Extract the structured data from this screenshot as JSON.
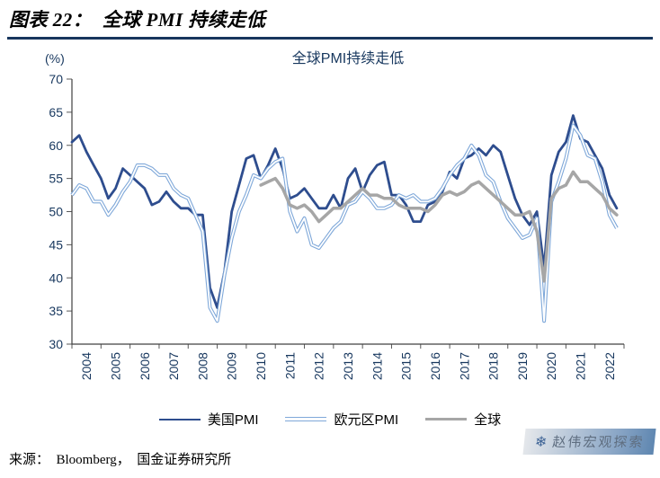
{
  "header": {
    "title": "图表 22：  全球 PMI 持续走低"
  },
  "chart_data": {
    "type": "line",
    "title": "全球PMI持续走低",
    "y_unit_label": "(%)",
    "ylim": [
      30,
      70
    ],
    "ytick_step": 5,
    "xlim": [
      2004,
      2023
    ],
    "x_years": [
      2004,
      2005,
      2006,
      2007,
      2008,
      2009,
      2010,
      2011,
      2012,
      2013,
      2014,
      2015,
      2016,
      2017,
      2018,
      2019,
      2020,
      2021,
      2022
    ],
    "legend_position": "bottom",
    "grid": false,
    "x": [
      2004,
      2004.25,
      2004.5,
      2004.75,
      2005,
      2005.25,
      2005.5,
      2005.75,
      2006,
      2006.25,
      2006.5,
      2006.75,
      2007,
      2007.25,
      2007.5,
      2007.75,
      2008,
      2008.25,
      2008.5,
      2008.75,
      2009,
      2009.25,
      2009.5,
      2009.75,
      2010,
      2010.25,
      2010.5,
      2010.75,
      2011,
      2011.25,
      2011.5,
      2011.75,
      2012,
      2012.25,
      2012.5,
      2012.75,
      2013,
      2013.25,
      2013.5,
      2013.75,
      2014,
      2014.25,
      2014.5,
      2014.75,
      2015,
      2015.25,
      2015.5,
      2015.75,
      2016,
      2016.25,
      2016.5,
      2016.75,
      2017,
      2017.25,
      2017.5,
      2017.75,
      2018,
      2018.25,
      2018.5,
      2018.75,
      2019,
      2019.25,
      2019.5,
      2019.75,
      2020,
      2020.25,
      2020.5,
      2020.75,
      2021,
      2021.25,
      2021.5,
      2021.75,
      2022,
      2022.25,
      2022.5,
      2022.75
    ],
    "series": [
      {
        "name": "美国PMI",
        "color": "#2E4D8E",
        "style": "solid",
        "width": 2.8,
        "values": [
          60.5,
          61.5,
          59,
          57,
          55,
          52,
          53.5,
          56.5,
          55.5,
          54.5,
          53.5,
          51,
          51.5,
          53,
          51.5,
          50.5,
          50.5,
          49.5,
          49.5,
          38.5,
          35.5,
          41,
          50,
          54,
          58,
          58.5,
          55,
          57,
          59.5,
          56.5,
          52,
          52.5,
          53.5,
          52,
          50.5,
          50.5,
          52.5,
          50.5,
          55,
          56.5,
          53,
          55.5,
          57,
          57.5,
          52.5,
          52.5,
          51,
          48.5,
          48.5,
          51,
          51.5,
          53,
          56,
          55,
          58,
          58.5,
          59.5,
          58.5,
          60,
          59,
          55.5,
          52,
          49.5,
          48,
          50,
          41.5,
          55.5,
          59,
          60.5,
          64.5,
          61,
          60.5,
          58.5,
          56.5,
          52.5,
          50.5
        ]
      },
      {
        "name": "欧元区PMI",
        "color": "#7FA8D9",
        "style": "double",
        "width": 4,
        "values": [
          52.5,
          54,
          53.5,
          51.5,
          51.5,
          49.5,
          51,
          53,
          54.5,
          57,
          57,
          56.5,
          55.5,
          55.5,
          53.5,
          52.5,
          52,
          49.5,
          47,
          35.5,
          33.5,
          40.5,
          46,
          50,
          52.5,
          55.5,
          55,
          56.5,
          57.5,
          58,
          50,
          47,
          49,
          45,
          44.5,
          46,
          47.5,
          48.5,
          51,
          51.5,
          53,
          52,
          50.5,
          50.5,
          51,
          52.5,
          52,
          52.5,
          51.5,
          51.5,
          52,
          53.5,
          55.5,
          57,
          58,
          60,
          58.5,
          55.5,
          54.5,
          51.5,
          49,
          47.5,
          46,
          46.5,
          49,
          33.5,
          51.5,
          54.5,
          58,
          63,
          61.5,
          58.5,
          58,
          54.5,
          49.5,
          47.5
        ]
      },
      {
        "name": "全球",
        "color": "#A6A6A6",
        "style": "solid",
        "width": 3.5,
        "values": [
          null,
          null,
          null,
          null,
          null,
          null,
          null,
          null,
          null,
          null,
          null,
          null,
          null,
          null,
          null,
          null,
          null,
          null,
          null,
          null,
          null,
          null,
          null,
          null,
          null,
          null,
          54,
          54.5,
          55,
          53.5,
          51,
          50.5,
          51,
          50,
          48.5,
          49.5,
          50.5,
          50.5,
          51.5,
          52.5,
          53.5,
          52.5,
          52.5,
          52,
          52,
          51,
          50.5,
          50.5,
          50.5,
          50,
          51,
          52.5,
          53,
          52.5,
          53,
          54,
          54.5,
          53.5,
          52.5,
          51.5,
          50.5,
          49.5,
          49.5,
          50,
          47,
          39.5,
          52,
          53.5,
          54,
          56,
          54.5,
          54.5,
          53.5,
          52.5,
          50.5,
          49.5
        ]
      }
    ]
  },
  "footer": {
    "source": "来源：  Bloomberg，  国金证券研究所"
  },
  "watermark": {
    "text": "赵伟宏观探索",
    "icon": "snowflake-icon"
  }
}
